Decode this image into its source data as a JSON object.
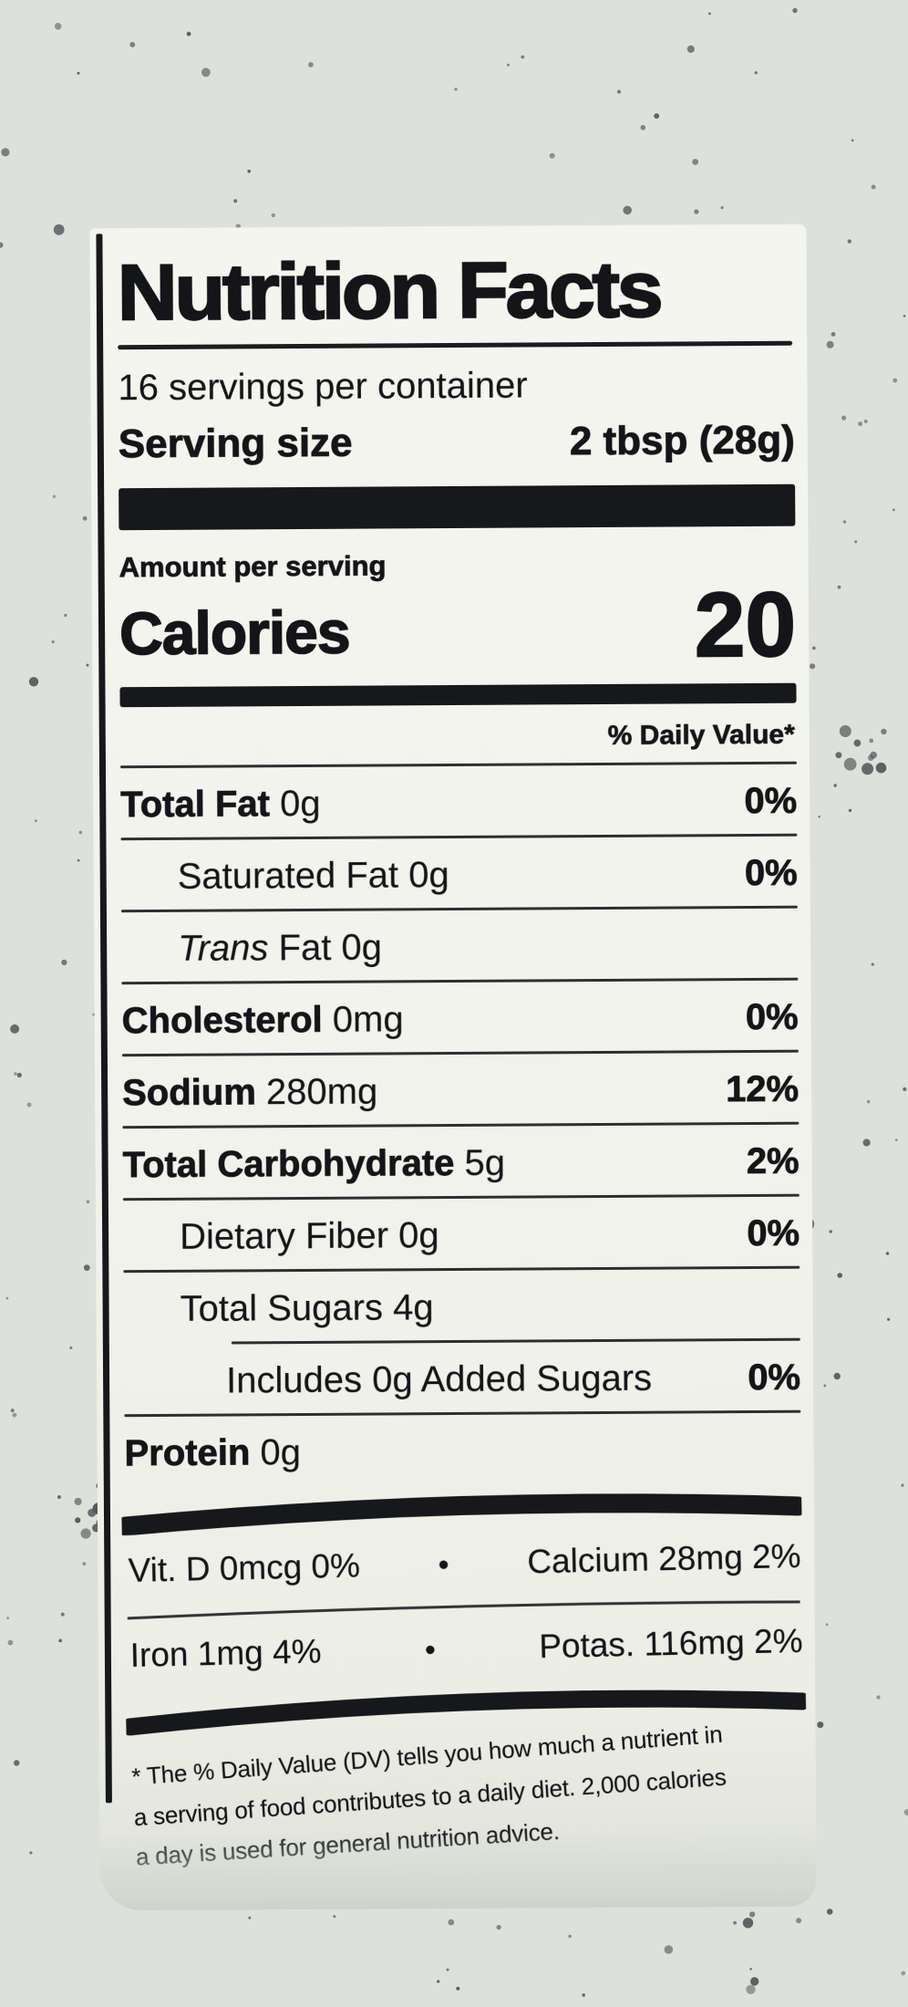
{
  "colors": {
    "background": "#dde1db",
    "speckle": "#54565a",
    "label_bg": "#f1f2eb",
    "ink": "#141518"
  },
  "label": {
    "title": "Nutrition Facts",
    "servings_per_container": "16 servings per container",
    "serving_size_label": "Serving size",
    "serving_size_value": "2 tbsp (28g)",
    "amount_per_serving": "Amount per serving",
    "calories_label": "Calories",
    "calories_value": "20",
    "daily_value_header": "% Daily Value*",
    "rows": [
      {
        "bold": "Total Fat",
        "it": "",
        "reg": " 0g",
        "dv": "0%"
      },
      {
        "bold": "",
        "it": "",
        "reg": "Saturated Fat 0g",
        "dv": "0%"
      },
      {
        "bold": "",
        "it": "Trans",
        "reg": " Fat 0g",
        "dv": ""
      },
      {
        "bold": "Cholesterol",
        "it": "",
        "reg": " 0mg",
        "dv": "0%"
      },
      {
        "bold": "Sodium",
        "it": "",
        "reg": " 280mg",
        "dv": "12%"
      },
      {
        "bold": "Total Carbohydrate",
        "it": "",
        "reg": " 5g",
        "dv": "2%"
      },
      {
        "bold": "",
        "it": "",
        "reg": "Dietary Fiber 0g",
        "dv": "0%"
      },
      {
        "bold": "",
        "it": "",
        "reg": "Total Sugars 4g",
        "dv": ""
      },
      {
        "bold": "",
        "it": "",
        "reg": "Includes 0g Added Sugars",
        "dv": "0%"
      },
      {
        "bold": "Protein",
        "it": "",
        "reg": " 0g",
        "dv": ""
      }
    ],
    "micros": [
      {
        "left": "Vit. D 0mcg 0%",
        "bullet": "•",
        "right": "Calcium 28mg 2%"
      },
      {
        "left": "Iron 1mg 4%",
        "bullet": "•",
        "right": "Potas. 116mg 2%"
      }
    ],
    "footnote_lines": [
      "* The % Daily Value (DV) tells you how much a nutrient in",
      "a serving of food contributes to a daily diet. 2,000 calories",
      "a day is used for general nutrition advice."
    ]
  }
}
